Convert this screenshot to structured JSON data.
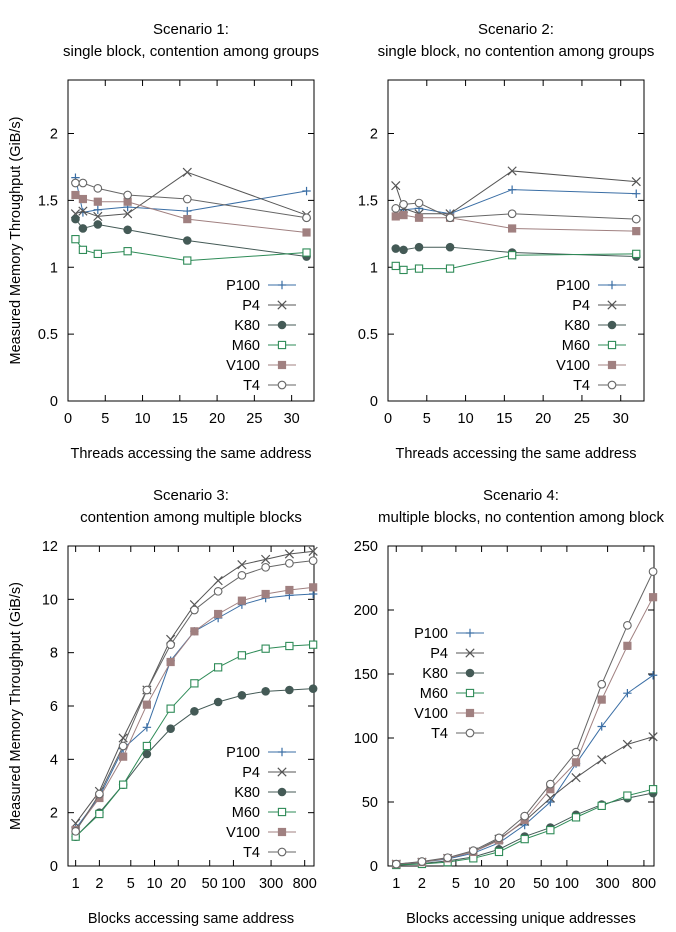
{
  "series_styles": [
    {
      "name": "P100",
      "color": "#3a6ea5",
      "marker": "plus"
    },
    {
      "name": "P4",
      "color": "#555555",
      "marker": "cross"
    },
    {
      "name": "K80",
      "color": "#445a56",
      "marker": "filled-circle"
    },
    {
      "name": "M60",
      "color": "#2e8b57",
      "marker": "open-square"
    },
    {
      "name": "V100",
      "color": "#a08080",
      "marker": "filled-square"
    },
    {
      "name": "T4",
      "color": "#666666",
      "marker": "open-circle"
    }
  ],
  "chart_data": [
    {
      "type": "line",
      "title_lines": [
        "Scenario 1:",
        "single block, contention among groups"
      ],
      "xlabel": "Threads accessing the same address",
      "ylabel": "Measured Memory Throughput (GiB/s)",
      "xscale": "linear",
      "xlim": [
        0,
        33
      ],
      "ylim": [
        0,
        2.4
      ],
      "xticks": [
        0,
        5,
        10,
        15,
        20,
        25,
        30
      ],
      "xticklabels": [
        "0",
        "5",
        "10",
        "15",
        "20",
        "25",
        "30"
      ],
      "yticks": [
        0,
        0.5,
        1,
        1.5,
        2
      ],
      "yticklabels": [
        "0",
        "0.5",
        "1",
        "1.5",
        "2"
      ],
      "legend": "bottom-right",
      "x": [
        1,
        2,
        4,
        8,
        16,
        32
      ],
      "series": [
        {
          "name": "P100",
          "values": [
            1.67,
            1.41,
            1.43,
            1.45,
            1.42,
            1.57
          ]
        },
        {
          "name": "P4",
          "values": [
            1.4,
            1.42,
            1.38,
            1.4,
            1.71,
            1.39
          ]
        },
        {
          "name": "K80",
          "values": [
            1.36,
            1.29,
            1.32,
            1.28,
            1.2,
            1.08
          ]
        },
        {
          "name": "M60",
          "values": [
            1.21,
            1.13,
            1.1,
            1.12,
            1.05,
            1.11
          ]
        },
        {
          "name": "V100",
          "values": [
            1.54,
            1.51,
            1.49,
            1.49,
            1.36,
            1.26
          ]
        },
        {
          "name": "T4",
          "values": [
            1.63,
            1.63,
            1.59,
            1.54,
            1.51,
            1.37
          ]
        }
      ]
    },
    {
      "type": "line",
      "title_lines": [
        "Scenario 2:",
        "single block, no contention among groups"
      ],
      "xlabel": "Threads accessing the same address",
      "ylabel": "",
      "xscale": "linear",
      "xlim": [
        0,
        33
      ],
      "ylim": [
        0,
        2.4
      ],
      "xticks": [
        0,
        5,
        10,
        15,
        20,
        25,
        30
      ],
      "xticklabels": [
        "0",
        "5",
        "10",
        "15",
        "20",
        "25",
        "30"
      ],
      "yticks": [
        0,
        0.5,
        1,
        1.5,
        2
      ],
      "yticklabels": [
        "0",
        "0.5",
        "1",
        "1.5",
        "2"
      ],
      "legend": "bottom-right",
      "x": [
        1,
        2,
        4,
        8,
        16,
        32
      ],
      "series": [
        {
          "name": "P100",
          "values": [
            1.43,
            1.43,
            1.44,
            1.4,
            1.58,
            1.55
          ]
        },
        {
          "name": "P4",
          "values": [
            1.61,
            1.44,
            1.4,
            1.4,
            1.72,
            1.64
          ]
        },
        {
          "name": "K80",
          "values": [
            1.14,
            1.13,
            1.15,
            1.15,
            1.11,
            1.08
          ]
        },
        {
          "name": "M60",
          "values": [
            1.01,
            0.98,
            0.99,
            0.99,
            1.09,
            1.1
          ]
        },
        {
          "name": "V100",
          "values": [
            1.38,
            1.39,
            1.37,
            1.37,
            1.29,
            1.27
          ]
        },
        {
          "name": "T4",
          "values": [
            1.44,
            1.47,
            1.48,
            1.37,
            1.4,
            1.36
          ]
        }
      ]
    },
    {
      "type": "line",
      "title_lines": [
        "Scenario 3:",
        "contention among multiple blocks"
      ],
      "xlabel": "Blocks accessing same address",
      "ylabel": "Measured Memory Throughput (GiB/s)",
      "xscale": "log",
      "xlim": [
        0.8,
        1050
      ],
      "ylim": [
        0,
        12
      ],
      "xticks": [
        1,
        2,
        5,
        10,
        20,
        50,
        100,
        300,
        800
      ],
      "xticklabels": [
        "1",
        "2",
        "5",
        "10",
        "20",
        "50",
        "100",
        "300",
        "800"
      ],
      "yticks": [
        0,
        2,
        4,
        6,
        8,
        10,
        12
      ],
      "yticklabels": [
        "0",
        "2",
        "4",
        "6",
        "8",
        "10",
        "12"
      ],
      "legend": "bottom-right",
      "x": [
        1,
        2,
        4,
        8,
        16,
        32,
        64,
        128,
        256,
        512,
        1024
      ],
      "series": [
        {
          "name": "P100",
          "values": [
            1.4,
            2.6,
            4.4,
            5.2,
            7.7,
            8.8,
            9.3,
            9.8,
            10.05,
            10.15,
            10.2
          ]
        },
        {
          "name": "P4",
          "values": [
            1.6,
            2.8,
            4.8,
            6.6,
            8.5,
            9.8,
            10.7,
            11.3,
            11.5,
            11.7,
            11.8
          ]
        },
        {
          "name": "K80",
          "values": [
            1.1,
            2.0,
            3.05,
            4.2,
            5.15,
            5.8,
            6.15,
            6.4,
            6.55,
            6.6,
            6.65
          ]
        },
        {
          "name": "M60",
          "values": [
            1.1,
            1.95,
            3.05,
            4.5,
            5.9,
            6.85,
            7.45,
            7.9,
            8.15,
            8.25,
            8.3
          ]
        },
        {
          "name": "V100",
          "values": [
            1.35,
            2.55,
            4.1,
            6.05,
            7.65,
            8.8,
            9.45,
            9.95,
            10.2,
            10.35,
            10.45
          ]
        },
        {
          "name": "T4",
          "values": [
            1.3,
            2.7,
            4.5,
            6.6,
            8.3,
            9.6,
            10.3,
            10.9,
            11.2,
            11.35,
            11.45
          ]
        }
      ]
    },
    {
      "type": "line",
      "title_lines": [
        "Scenario 4:",
        "multiple blocks, no contention among block"
      ],
      "xlabel": "Blocks accessing unique addresses",
      "ylabel": "",
      "xscale": "log",
      "xlim": [
        0.8,
        1050
      ],
      "ylim": [
        0,
        250
      ],
      "xticks": [
        1,
        2,
        5,
        10,
        20,
        50,
        100,
        300,
        800
      ],
      "xticklabels": [
        "1",
        "2",
        "5",
        "10",
        "20",
        "50",
        "100",
        "300",
        "800"
      ],
      "yticks": [
        0,
        50,
        100,
        150,
        200,
        250
      ],
      "yticklabels": [
        "0",
        "50",
        "100",
        "150",
        "200",
        "250"
      ],
      "legend": "top-left",
      "x": [
        1,
        2,
        4,
        8,
        16,
        32,
        64,
        128,
        256,
        512,
        1024
      ],
      "series": [
        {
          "name": "P100",
          "values": [
            1.5,
            3,
            5.5,
            10,
            18,
            32,
            50,
            80,
            109,
            135,
            149
          ]
        },
        {
          "name": "P4",
          "values": [
            1.5,
            3,
            6,
            11,
            21,
            35,
            53,
            69,
            83,
            95,
            101
          ]
        },
        {
          "name": "K80",
          "values": [
            1,
            2,
            4,
            7,
            13,
            23,
            30,
            40,
            48,
            53,
            57
          ]
        },
        {
          "name": "M60",
          "values": [
            0.8,
            1.6,
            3,
            6,
            11,
            21,
            28,
            38,
            47,
            55,
            60
          ]
        },
        {
          "name": "V100",
          "values": [
            1.5,
            3,
            6,
            11,
            20,
            36,
            60,
            81,
            130,
            172,
            210
          ]
        },
        {
          "name": "T4",
          "values": [
            1.5,
            3.5,
            6.5,
            12,
            22,
            39,
            64,
            89,
            142,
            188,
            230
          ]
        }
      ]
    }
  ]
}
